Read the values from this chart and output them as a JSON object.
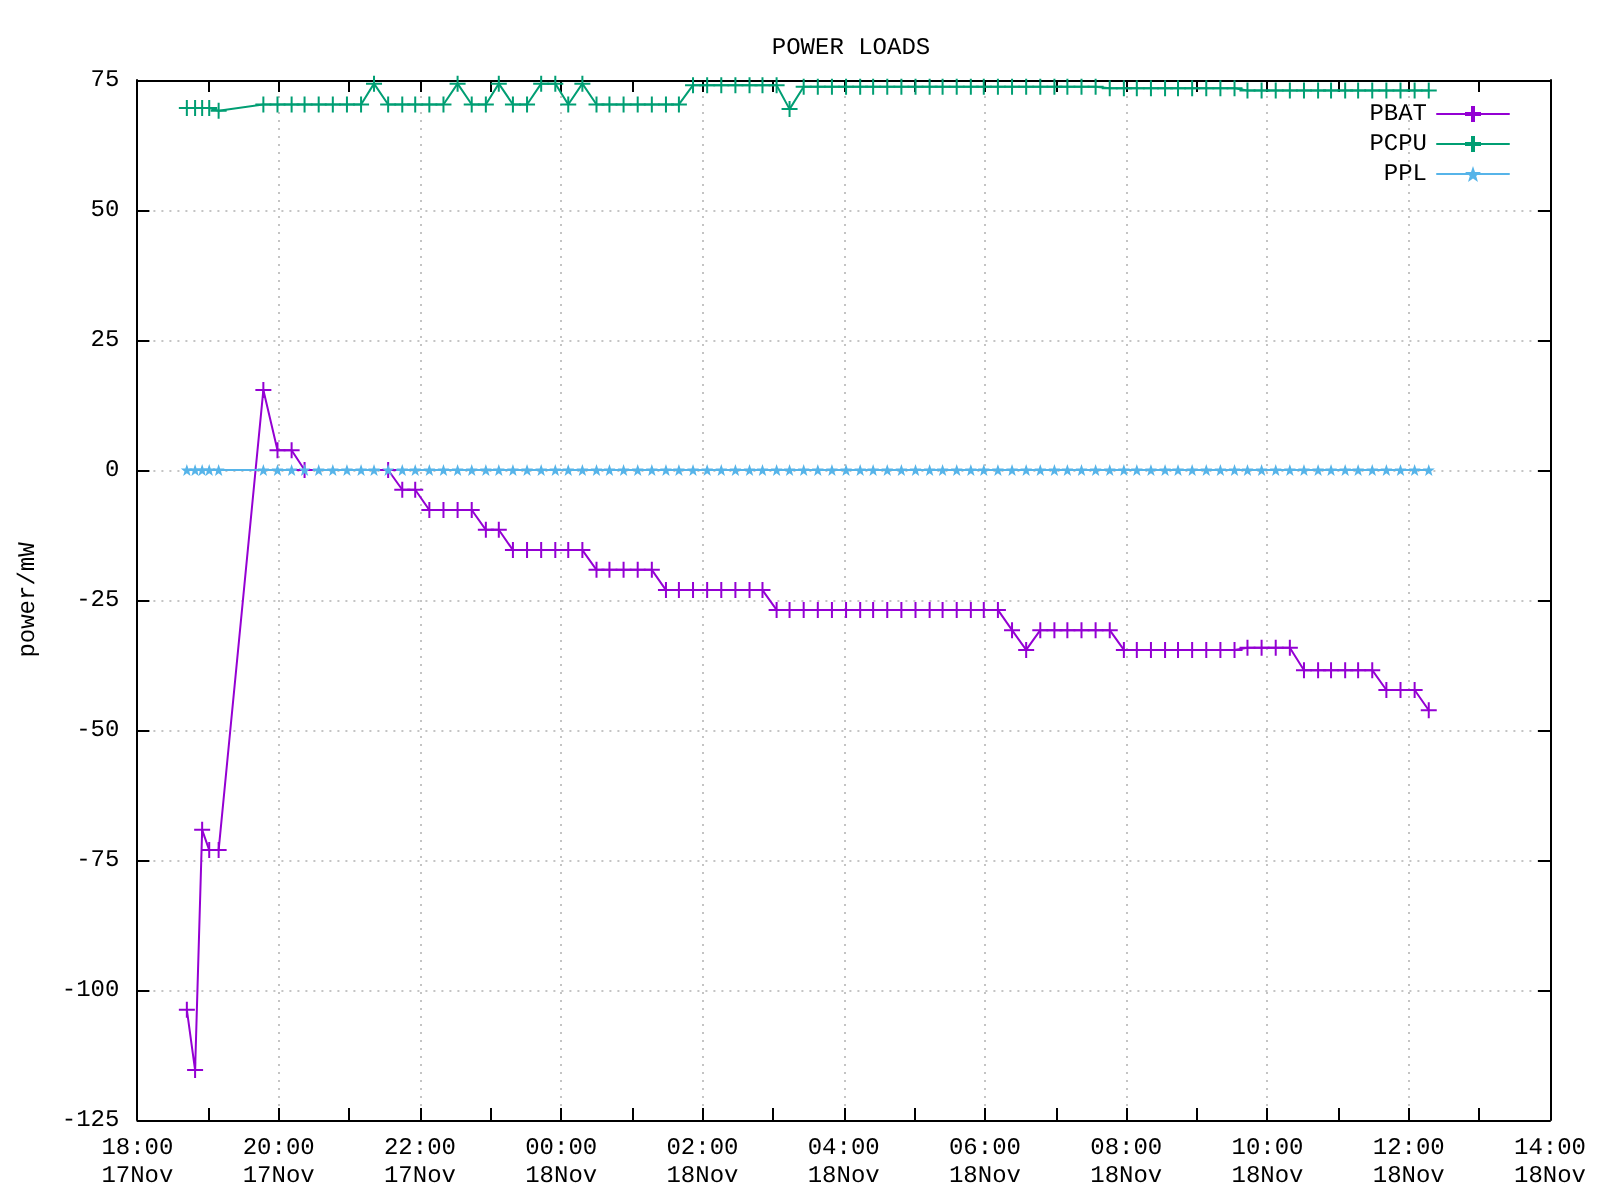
{
  "chart_data": {
    "type": "line",
    "title": "POWER LOADS",
    "ylabel": "power/mW",
    "x": [
      "--11-17T18:42",
      "--11-17T18:49",
      "--11-17T18:55",
      "--11-17T19:01",
      "--11-17T19:09",
      "--11-17T19:47",
      "--11-17T19:59",
      "--11-17T20:11",
      "--11-17T20:22",
      "--11-17T20:34",
      "--11-17T20:46",
      "--11-17T20:58",
      "--11-17T21:10",
      "--11-17T21:21",
      "--11-17T21:33",
      "--11-17T21:45",
      "--11-17T21:56",
      "--11-17T22:08",
      "--11-17T22:20",
      "--11-17T22:32",
      "--11-17T22:44",
      "--11-17T22:56",
      "--11-17T23:07",
      "--11-17T23:19",
      "--11-17T23:31",
      "--11-17T23:43",
      "--11-17T23:55",
      "--11-18T00:06",
      "--11-18T00:18",
      "--11-18T00:30",
      "--11-18T00:41",
      "--11-18T00:53",
      "--11-18T01:05",
      "--11-18T01:17",
      "--11-18T01:29",
      "--11-18T01:40",
      "--11-18T01:52",
      "--11-18T02:04",
      "--11-18T02:16",
      "--11-18T02:28",
      "--11-18T02:40",
      "--11-18T02:51",
      "--11-18T03:03",
      "--11-18T03:14",
      "--11-18T03:26",
      "--11-18T03:38",
      "--11-18T03:50",
      "--11-18T04:02",
      "--11-18T04:14",
      "--11-18T04:25",
      "--11-18T04:37",
      "--11-18T04:49",
      "--11-18T05:01",
      "--11-18T05:13",
      "--11-18T05:24",
      "--11-18T05:36",
      "--11-18T05:48",
      "--11-18T05:59",
      "--11-18T06:11",
      "--11-18T06:23",
      "--11-18T06:35",
      "--11-18T06:47",
      "--11-18T06:59",
      "--11-18T07:10",
      "--11-18T07:22",
      "--11-18T07:34",
      "--11-18T07:46",
      "--11-18T07:58",
      "--11-18T08:09",
      "--11-18T08:21",
      "--11-18T08:33",
      "--11-18T08:44",
      "--11-18T08:56",
      "--11-18T09:08",
      "--11-18T09:20",
      "--11-18T09:32",
      "--11-18T09:43",
      "--11-18T09:55",
      "--11-18T10:07",
      "--11-18T10:19",
      "--11-18T10:31",
      "--11-18T10:43",
      "--11-18T10:54",
      "--11-18T11:06",
      "--11-18T11:17",
      "--11-18T11:29",
      "--11-18T11:41",
      "--11-18T11:53",
      "--11-18T12:05",
      "--11-18T12:17"
    ],
    "series": [
      {
        "name": "PBAT",
        "color": "#9400d3",
        "marker": "cross",
        "values": [
          -103.8,
          -115.4,
          -69.2,
          -73.1,
          -73.1,
          15.4,
          3.8,
          3.8,
          0,
          null,
          null,
          null,
          null,
          null,
          0,
          -3.8,
          -3.8,
          -7.7,
          -7.7,
          -7.7,
          -7.7,
          -11.5,
          -11.5,
          -15.4,
          -15.4,
          -15.4,
          -15.4,
          -15.4,
          -15.4,
          -19.2,
          -19.2,
          -19.2,
          -19.2,
          -19.2,
          -23.1,
          -23.1,
          -23.1,
          -23.1,
          -23.1,
          -23.1,
          -23.1,
          -23.1,
          -26.9,
          -26.9,
          -26.9,
          -26.9,
          -26.9,
          -26.9,
          -26.9,
          -26.9,
          -26.9,
          -26.9,
          -26.9,
          -26.9,
          -26.9,
          -26.9,
          -26.9,
          -26.9,
          -26.9,
          -30.8,
          -34.6,
          -30.8,
          -30.8,
          -30.8,
          -30.8,
          -30.8,
          -30.8,
          -34.6,
          -34.6,
          -34.6,
          -34.6,
          -34.6,
          -34.6,
          -34.6,
          -34.6,
          -34.6,
          -34.2,
          -34.2,
          -34.2,
          -34.2,
          -38.5,
          -38.5,
          -38.5,
          -38.5,
          -38.5,
          -38.5,
          -42.3,
          -42.3,
          -42.3,
          -46.2
        ]
      },
      {
        "name": "PCPU",
        "color": "#009e73",
        "marker": "cross",
        "values": [
          69.6,
          69.6,
          69.6,
          69.6,
          69.1,
          70.3,
          70.3,
          70.3,
          70.3,
          70.3,
          70.3,
          70.3,
          70.3,
          74.3,
          70.3,
          70.3,
          70.3,
          70.3,
          70.3,
          74.3,
          70.3,
          70.3,
          74.3,
          70.3,
          70.3,
          74.3,
          74.3,
          70.3,
          74.3,
          70.3,
          70.3,
          70.3,
          70.3,
          70.3,
          70.3,
          70.3,
          74.0,
          74.0,
          74.0,
          74.0,
          74.0,
          74.0,
          74.0,
          69.4,
          73.7,
          73.7,
          73.7,
          73.7,
          73.7,
          73.7,
          73.7,
          73.7,
          73.7,
          73.7,
          73.7,
          73.7,
          73.7,
          73.7,
          73.7,
          73.7,
          73.7,
          73.7,
          73.7,
          73.7,
          73.7,
          73.7,
          73.4,
          73.4,
          73.4,
          73.4,
          73.4,
          73.4,
          73.4,
          73.4,
          73.4,
          73.4,
          73.0,
          73.0,
          73.0,
          73.0,
          73.0,
          73.0,
          73.0,
          73.0,
          73.0,
          73.0,
          73.0,
          73.0,
          73.0,
          73.0
        ]
      },
      {
        "name": "PPL",
        "color": "#56b4e9",
        "marker": "star",
        "values": [
          0,
          0,
          0,
          0,
          0,
          0,
          0,
          0,
          0,
          0,
          0,
          0,
          0,
          0,
          0,
          0,
          0,
          0,
          0,
          0,
          0,
          0,
          0,
          0,
          0,
          0,
          0,
          0,
          0,
          0,
          0,
          0,
          0,
          0,
          0,
          0,
          0,
          0,
          0,
          0,
          0,
          0,
          0,
          0,
          0,
          0,
          0,
          0,
          0,
          0,
          0,
          0,
          0,
          0,
          0,
          0,
          0,
          0,
          0,
          0,
          0,
          0,
          0,
          0,
          0,
          0,
          0,
          0,
          0,
          0,
          0,
          0,
          0,
          0,
          0,
          0,
          0,
          0,
          0,
          0,
          0,
          0,
          0,
          0,
          0,
          0,
          0,
          0,
          0,
          0
        ]
      }
    ],
    "xlim": [
      "--11-17T18:00",
      "--11-18T14:00"
    ],
    "xticks": [
      {
        "value": "--11-17T18:00",
        "label": "18:00\n17Nov"
      },
      {
        "value": "--11-17T19:00",
        "label": null
      },
      {
        "value": "--11-17T20:00",
        "label": "20:00\n17Nov"
      },
      {
        "value": "--11-17T21:00",
        "label": null
      },
      {
        "value": "--11-17T22:00",
        "label": "22:00\n17Nov"
      },
      {
        "value": "--11-17T23:00",
        "label": null
      },
      {
        "value": "--11-18T00:00",
        "label": "00:00\n18Nov"
      },
      {
        "value": "--11-18T01:00",
        "label": null
      },
      {
        "value": "--11-18T02:00",
        "label": "02:00\n18Nov"
      },
      {
        "value": "--11-18T03:00",
        "label": null
      },
      {
        "value": "--11-18T04:00",
        "label": "04:00\n18Nov"
      },
      {
        "value": "--11-18T05:00",
        "label": null
      },
      {
        "value": "--11-18T06:00",
        "label": "06:00\n18Nov"
      },
      {
        "value": "--11-18T07:00",
        "label": null
      },
      {
        "value": "--11-18T08:00",
        "label": "08:00\n18Nov"
      },
      {
        "value": "--11-18T09:00",
        "label": null
      },
      {
        "value": "--11-18T10:00",
        "label": "10:00\n18Nov"
      },
      {
        "value": "--11-18T11:00",
        "label": null
      },
      {
        "value": "--11-18T12:00",
        "label": "12:00\n18Nov"
      },
      {
        "value": "--11-18T13:00",
        "label": null
      },
      {
        "value": "--11-18T14:00",
        "label": "14:00\n18Nov"
      }
    ],
    "ylim": [
      -125,
      75
    ],
    "yticks": [
      -125,
      -100,
      -75,
      -50,
      -25,
      0,
      25,
      50,
      75
    ],
    "grid": true,
    "legend": "top right"
  }
}
